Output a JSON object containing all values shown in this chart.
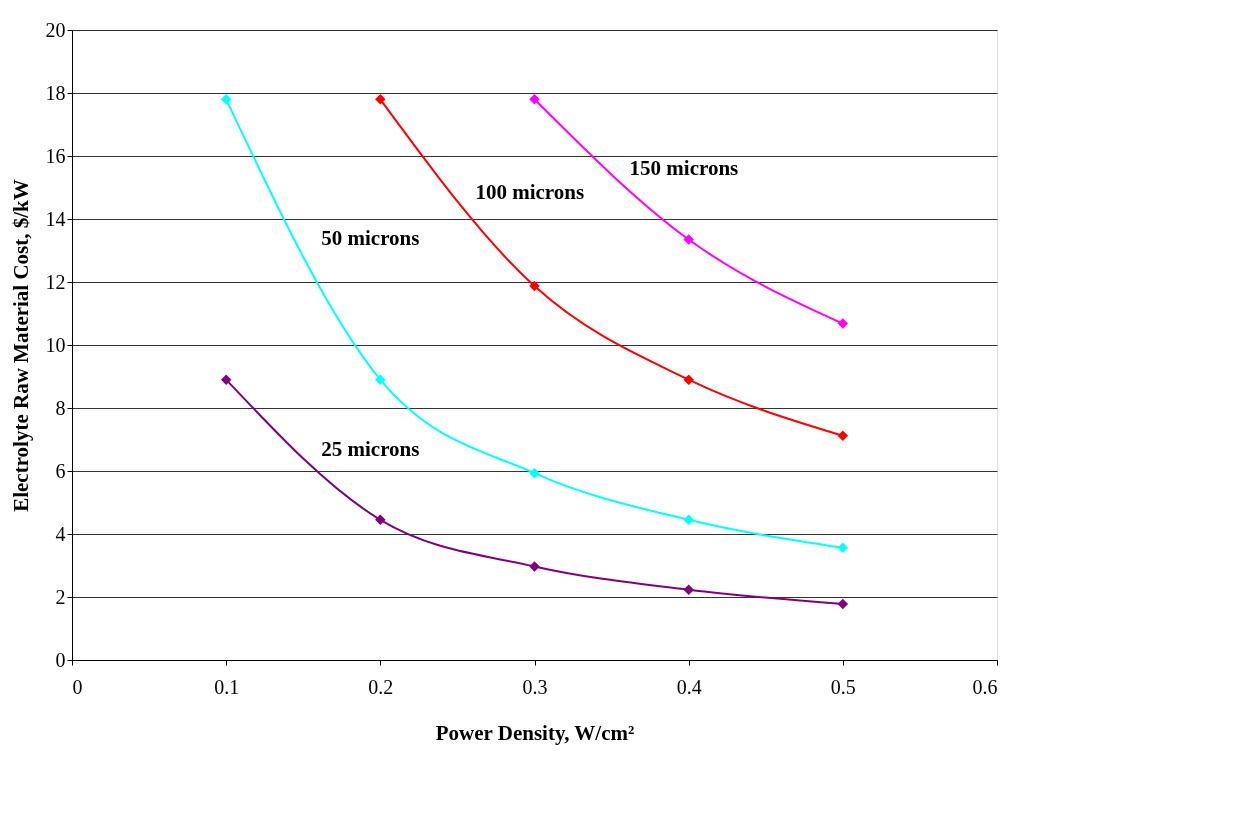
{
  "chart_data": {
    "type": "line",
    "xlabel": "Power Density, W/cm²",
    "ylabel": "Electrolyte Raw Material Cost, $/kW",
    "xlim": [
      0,
      0.6
    ],
    "xticks": [
      0,
      0.1,
      0.2,
      0.3,
      0.4,
      0.5,
      0.6
    ],
    "ylim": [
      0,
      20
    ],
    "yticks": [
      0,
      2,
      4,
      6,
      8,
      10,
      12,
      14,
      16,
      18,
      20
    ],
    "grid": "y",
    "marker": "diamond",
    "line_style": "solid",
    "legend": false,
    "series": [
      {
        "name": "25 microns",
        "color": "#800080",
        "x": [
          0.1,
          0.2,
          0.3,
          0.4,
          0.5
        ],
        "values": [
          8.9,
          4.45,
          2.97,
          2.23,
          1.78
        ]
      },
      {
        "name": "50 microns",
        "color": "#00ffff",
        "x": [
          0.1,
          0.2,
          0.3,
          0.4,
          0.5
        ],
        "values": [
          17.8,
          8.9,
          5.93,
          4.45,
          3.56
        ]
      },
      {
        "name": "100 microns",
        "color": "#ff0000",
        "x": [
          0.2,
          0.3,
          0.4,
          0.5
        ],
        "values": [
          17.8,
          11.87,
          8.9,
          7.12
        ]
      },
      {
        "name": "150 microns",
        "color": "#ff00ff",
        "x": [
          0.3,
          0.4,
          0.5
        ],
        "values": [
          17.8,
          13.35,
          10.68
        ]
      }
    ]
  }
}
